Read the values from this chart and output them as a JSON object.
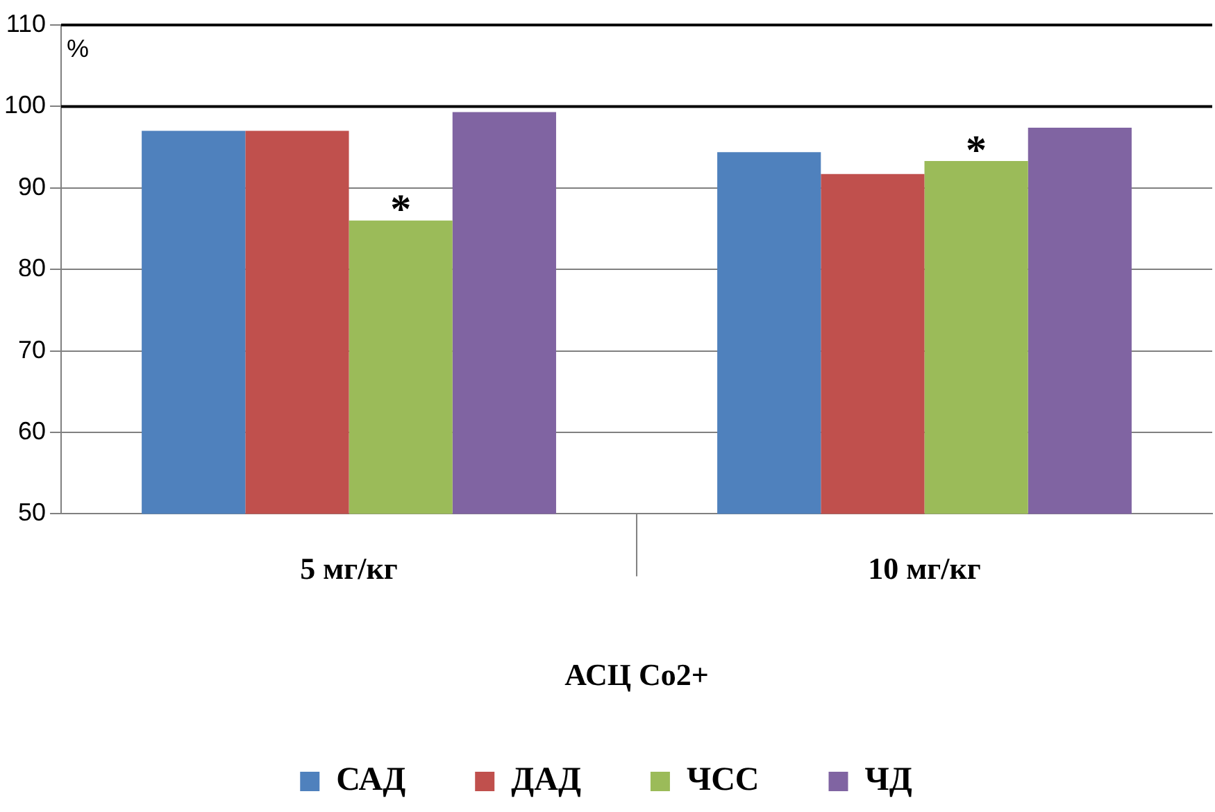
{
  "chart_data": {
    "type": "bar",
    "ylabel": "%",
    "xlabel": "АСЦ Co2+",
    "categories": [
      "5 мг/кг",
      "10 мг/кг"
    ],
    "series": [
      {
        "name": "САД",
        "color": "#4f81bd",
        "values": [
          97,
          94.4
        ]
      },
      {
        "name": "ДАД",
        "color": "#c0504d",
        "values": [
          97,
          91.7
        ]
      },
      {
        "name": "ЧСС",
        "color": "#9bbb59",
        "values": [
          86,
          93.3
        ]
      },
      {
        "name": "ЧД",
        "color": "#8064a2",
        "values": [
          99.3,
          97.4
        ]
      }
    ],
    "ylim": [
      50,
      110
    ],
    "yticks": [
      50,
      60,
      70,
      80,
      90,
      100,
      110
    ],
    "grid": "y",
    "legend": "bottom",
    "ref_lines": [
      {
        "axis": "y",
        "value": 100,
        "color": "#000000"
      },
      {
        "axis": "y",
        "value": 110,
        "color": "#000000"
      }
    ],
    "annotations": [
      {
        "text": "*",
        "x": "5 мг/кг",
        "y": 86
      },
      {
        "text": "*",
        "x": "10 мг/кг",
        "y": 93.3
      }
    ]
  }
}
